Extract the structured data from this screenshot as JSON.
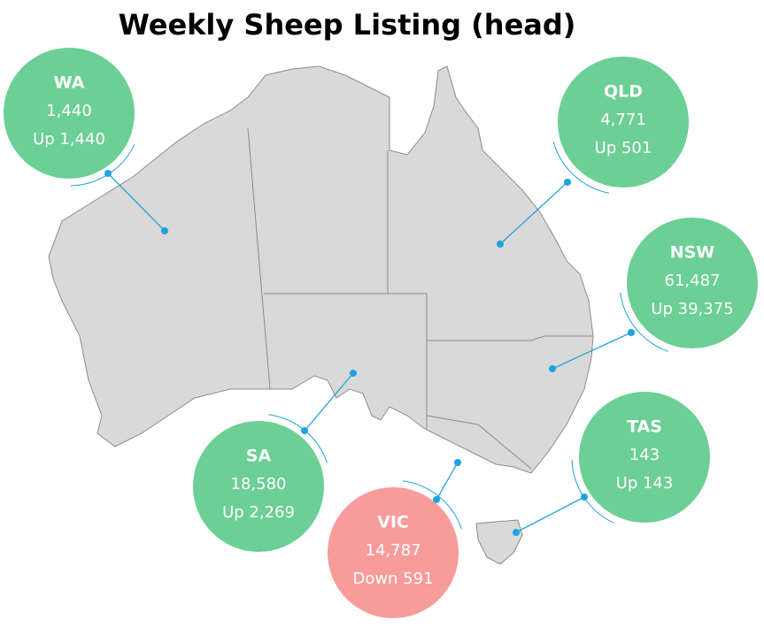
{
  "title": "Weekly Sheep Listing (head)",
  "regions": [
    {
      "name": "WA",
      "value": "1,440",
      "change": "Up 1,440",
      "trend": "up"
    },
    {
      "name": "QLD",
      "value": "4,771",
      "change": "Up 501",
      "trend": "up"
    },
    {
      "name": "NSW",
      "value": "61,487",
      "change": "Up 39,375",
      "trend": "up"
    },
    {
      "name": "TAS",
      "value": "143",
      "change": "Up 143",
      "trend": "up"
    },
    {
      "name": "SA",
      "value": "18,580",
      "change": "Up 2,269",
      "trend": "up"
    },
    {
      "name": "VIC",
      "value": "14,787",
      "change": "Down 591",
      "trend": "down"
    }
  ]
}
